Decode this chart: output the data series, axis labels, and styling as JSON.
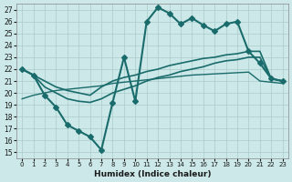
{
  "xlabel": "Humidex (Indice chaleur)",
  "ylabel": "",
  "background_color": "#cce8e8",
  "grid_color": "#aacccc",
  "line_color": "#1a6b6b",
  "xlim": [
    -0.5,
    23.5
  ],
  "ylim": [
    14.5,
    27.5
  ],
  "yticks": [
    15,
    16,
    17,
    18,
    19,
    20,
    21,
    22,
    23,
    24,
    25,
    26,
    27
  ],
  "xticks": [
    0,
    1,
    2,
    3,
    4,
    5,
    6,
    7,
    8,
    9,
    10,
    11,
    12,
    13,
    14,
    15,
    16,
    17,
    18,
    19,
    20,
    21,
    22,
    23
  ],
  "series": [
    {
      "x": [
        0,
        1,
        2,
        3,
        4,
        5,
        6,
        7,
        8,
        9,
        10,
        11,
        12,
        13,
        14,
        15,
        16,
        17,
        18,
        19,
        20,
        21,
        22,
        23
      ],
      "y": [
        22,
        21.5,
        19.8,
        18.8,
        17.3,
        16.8,
        16.3,
        15.2,
        19.2,
        23.0,
        19.3,
        26.0,
        27.2,
        26.7,
        25.8,
        26.3,
        25.7,
        25.2,
        25.8,
        26.0,
        23.5,
        22.5,
        21.2,
        21.0
      ],
      "marker": "D",
      "markersize": 3,
      "linewidth": 1.5
    },
    {
      "x": [
        0,
        1,
        2,
        3,
        4,
        5,
        6,
        7,
        8,
        9,
        10,
        11,
        12,
        13,
        14,
        15,
        16,
        17,
        18,
        19,
        20,
        21,
        22,
        23
      ],
      "y": [
        22.0,
        21.5,
        21.0,
        20.5,
        20.2,
        20.0,
        19.8,
        20.5,
        21.0,
        21.3,
        21.5,
        21.8,
        22.0,
        22.3,
        22.5,
        22.7,
        22.9,
        23.0,
        23.2,
        23.3,
        23.5,
        23.5,
        21.2,
        21.0
      ],
      "marker": null,
      "markersize": 0,
      "linewidth": 1.2
    },
    {
      "x": [
        0,
        1,
        2,
        3,
        4,
        5,
        6,
        7,
        8,
        9,
        10,
        11,
        12,
        13,
        14,
        15,
        16,
        17,
        18,
        19,
        20,
        21,
        22,
        23
      ],
      "y": [
        22.0,
        21.5,
        20.5,
        20.0,
        19.5,
        19.3,
        19.2,
        19.5,
        20.0,
        20.3,
        20.6,
        21.0,
        21.3,
        21.5,
        21.8,
        22.0,
        22.2,
        22.5,
        22.7,
        22.8,
        23.0,
        23.0,
        21.2,
        21.0
      ],
      "marker": null,
      "markersize": 0,
      "linewidth": 1.2
    },
    {
      "x": [
        0,
        1,
        2,
        3,
        4,
        5,
        6,
        7,
        8,
        9,
        10,
        11,
        12,
        13,
        14,
        15,
        16,
        17,
        18,
        19,
        20,
        21,
        22,
        23
      ],
      "y": [
        19.5,
        19.8,
        20.0,
        20.2,
        20.3,
        20.4,
        20.5,
        20.6,
        20.8,
        20.9,
        21.0,
        21.1,
        21.2,
        21.3,
        21.4,
        21.5,
        21.55,
        21.6,
        21.65,
        21.7,
        21.75,
        21.0,
        20.9,
        20.8
      ],
      "marker": null,
      "markersize": 0,
      "linewidth": 1.0
    }
  ]
}
